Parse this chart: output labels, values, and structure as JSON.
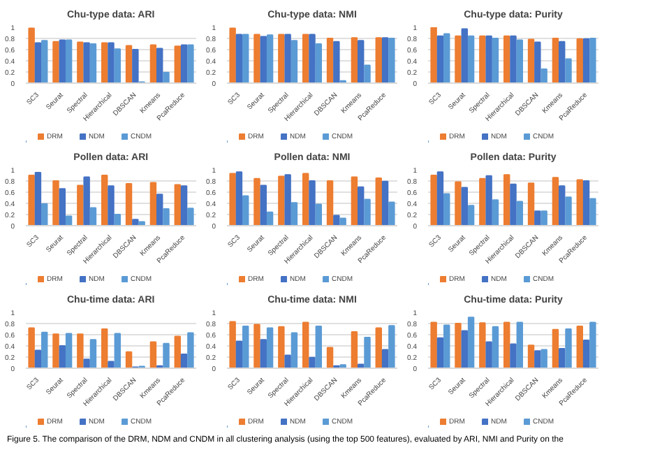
{
  "chart_data": [
    {
      "type": "bar",
      "title": "Chu-type data: ARI",
      "categories": [
        "SC3",
        "Seurat",
        "Spectral",
        "Hierarchical",
        "DBSCAN",
        "Kmeans",
        "PcaReduce"
      ],
      "series": [
        {
          "name": "DRM",
          "color": "#ed7d31",
          "values": [
            0.98,
            0.74,
            0.73,
            0.72,
            0.67,
            0.68,
            0.66
          ]
        },
        {
          "name": "NDM",
          "color": "#4472c4",
          "values": [
            0.72,
            0.77,
            0.72,
            0.72,
            0.6,
            0.62,
            0.68
          ]
        },
        {
          "name": "CNDM",
          "color": "#5b9bd5",
          "values": [
            0.76,
            0.77,
            0.7,
            0.61,
            0.02,
            0.19,
            0.68
          ]
        }
      ],
      "ylim": [
        0,
        1
      ],
      "yticks": [
        0,
        0.2,
        0.4,
        0.6,
        0.8,
        1
      ],
      "grid": "y",
      "legend": "bottom"
    },
    {
      "type": "bar",
      "title": "Chu-type data: NMI",
      "categories": [
        "SC3",
        "Seurat",
        "Spectral",
        "Hierarchical",
        "DBSCAN",
        "Kmeans",
        "PcaReduce"
      ],
      "series": [
        {
          "name": "DRM",
          "color": "#ed7d31",
          "values": [
            0.98,
            0.87,
            0.87,
            0.87,
            0.8,
            0.81,
            0.81
          ]
        },
        {
          "name": "NDM",
          "color": "#4472c4",
          "values": [
            0.87,
            0.83,
            0.87,
            0.87,
            0.74,
            0.76,
            0.81
          ]
        },
        {
          "name": "CNDM",
          "color": "#5b9bd5",
          "values": [
            0.87,
            0.86,
            0.76,
            0.7,
            0.04,
            0.32,
            0.8
          ]
        }
      ],
      "ylim": [
        0,
        1
      ],
      "yticks": [
        0,
        0.2,
        0.4,
        0.6,
        0.8,
        1
      ],
      "grid": "y",
      "legend": "bottom"
    },
    {
      "type": "bar",
      "title": "Chu-type data: Purity",
      "categories": [
        "SC3",
        "Seurat",
        "Spectral",
        "Hierarchical",
        "DBSCAN",
        "Kmeans",
        "PcaReduce"
      ],
      "series": [
        {
          "name": "DRM",
          "color": "#ed7d31",
          "values": [
            1.0,
            0.84,
            0.84,
            0.84,
            0.78,
            0.8,
            0.79
          ]
        },
        {
          "name": "NDM",
          "color": "#4472c4",
          "values": [
            0.84,
            0.97,
            0.84,
            0.84,
            0.73,
            0.74,
            0.79
          ]
        },
        {
          "name": "CNDM",
          "color": "#5b9bd5",
          "values": [
            0.88,
            0.84,
            0.8,
            0.77,
            0.25,
            0.43,
            0.8
          ]
        }
      ],
      "ylim": [
        0,
        1
      ],
      "yticks": [
        0,
        0.2,
        0.4,
        0.6,
        0.8,
        1
      ],
      "grid": "y",
      "legend": "bottom"
    },
    {
      "type": "bar",
      "title": "Pollen data: ARI",
      "categories": [
        "SC3",
        "Seurat",
        "Spectral",
        "Hierarchical",
        "DBSCAN",
        "Kmeans",
        "PcaReduce"
      ],
      "series": [
        {
          "name": "DRM",
          "color": "#ed7d31",
          "values": [
            0.9,
            0.8,
            0.72,
            0.9,
            0.75,
            0.77,
            0.73
          ]
        },
        {
          "name": "NDM",
          "color": "#4472c4",
          "values": [
            0.95,
            0.66,
            0.87,
            0.71,
            0.11,
            0.56,
            0.71
          ]
        },
        {
          "name": "CNDM",
          "color": "#5b9bd5",
          "values": [
            0.39,
            0.17,
            0.32,
            0.2,
            0.07,
            0.3,
            0.31
          ]
        }
      ],
      "ylim": [
        0,
        1
      ],
      "yticks": [
        0,
        0.2,
        0.4,
        0.6,
        0.8,
        1
      ],
      "grid": "y",
      "legend": "bottom"
    },
    {
      "type": "bar",
      "title": "Pollen data: NMI",
      "categories": [
        "SC3",
        "Seurat",
        "Spectral",
        "Hierarchical",
        "DBSCAN",
        "Kmeans",
        "PcaReduce"
      ],
      "series": [
        {
          "name": "DRM",
          "color": "#ed7d31",
          "values": [
            0.93,
            0.84,
            0.88,
            0.93,
            0.8,
            0.87,
            0.85
          ]
        },
        {
          "name": "NDM",
          "color": "#4472c4",
          "values": [
            0.96,
            0.72,
            0.91,
            0.8,
            0.18,
            0.69,
            0.79
          ]
        },
        {
          "name": "CNDM",
          "color": "#5b9bd5",
          "values": [
            0.53,
            0.24,
            0.41,
            0.38,
            0.13,
            0.47,
            0.42
          ]
        }
      ],
      "ylim": [
        0,
        1
      ],
      "yticks": [
        0,
        0.2,
        0.4,
        0.6,
        0.8,
        1
      ],
      "grid": "y",
      "legend": "bottom"
    },
    {
      "type": "bar",
      "title": "Pollen data: Purity",
      "categories": [
        "SC3",
        "Seurat",
        "Spectral",
        "Hierarchical",
        "DBSCAN",
        "Kmeans",
        "PcaReduce"
      ],
      "series": [
        {
          "name": "DRM",
          "color": "#ed7d31",
          "values": [
            0.9,
            0.78,
            0.84,
            0.91,
            0.76,
            0.86,
            0.82
          ]
        },
        {
          "name": "NDM",
          "color": "#4472c4",
          "values": [
            0.96,
            0.68,
            0.89,
            0.74,
            0.26,
            0.71,
            0.8
          ]
        },
        {
          "name": "CNDM",
          "color": "#5b9bd5",
          "values": [
            0.57,
            0.36,
            0.46,
            0.43,
            0.26,
            0.51,
            0.48
          ]
        }
      ],
      "ylim": [
        0,
        1
      ],
      "yticks": [
        0,
        0.2,
        0.4,
        0.6,
        0.8,
        1
      ],
      "grid": "y",
      "legend": "bottom"
    },
    {
      "type": "bar",
      "title": "Chu-time data: ARI",
      "categories": [
        "SC3",
        "Seurat",
        "Spectral",
        "Hierarchical",
        "DBSCAN",
        "Kmeans",
        "PcaReduce"
      ],
      "series": [
        {
          "name": "DRM",
          "color": "#ed7d31",
          "values": [
            0.72,
            0.61,
            0.61,
            0.7,
            0.29,
            0.47,
            0.57
          ]
        },
        {
          "name": "NDM",
          "color": "#4472c4",
          "values": [
            0.32,
            0.4,
            0.16,
            0.12,
            0.02,
            0.04,
            0.25
          ]
        },
        {
          "name": "CNDM",
          "color": "#5b9bd5",
          "values": [
            0.64,
            0.62,
            0.51,
            0.62,
            0.03,
            0.44,
            0.63
          ]
        }
      ],
      "ylim": [
        0,
        1
      ],
      "yticks": [
        0,
        0.2,
        0.4,
        0.6,
        0.8,
        1
      ],
      "grid": "y",
      "legend": "bottom"
    },
    {
      "type": "bar",
      "title": "Chu-time data: NMI",
      "categories": [
        "SC3",
        "Seurat",
        "Spectral",
        "Hierarchical",
        "DBSCAN",
        "Kmeans",
        "PcaReduce"
      ],
      "series": [
        {
          "name": "DRM",
          "color": "#ed7d31",
          "values": [
            0.83,
            0.78,
            0.74,
            0.82,
            0.37,
            0.65,
            0.72
          ]
        },
        {
          "name": "NDM",
          "color": "#4472c4",
          "values": [
            0.48,
            0.51,
            0.23,
            0.19,
            0.04,
            0.07,
            0.33
          ]
        },
        {
          "name": "CNDM",
          "color": "#5b9bd5",
          "values": [
            0.75,
            0.72,
            0.63,
            0.75,
            0.06,
            0.55,
            0.76
          ]
        }
      ],
      "ylim": [
        0,
        1
      ],
      "yticks": [
        0,
        0.2,
        0.4,
        0.6,
        0.8,
        1
      ],
      "grid": "y",
      "legend": "bottom"
    },
    {
      "type": "bar",
      "title": "Chu-time data: Purity",
      "categories": [
        "SC3",
        "Seurat",
        "Spectral",
        "Hierarchical",
        "DBSCAN",
        "Kmeans",
        "PcaReduce"
      ],
      "series": [
        {
          "name": "DRM",
          "color": "#ed7d31",
          "values": [
            0.82,
            0.8,
            0.81,
            0.82,
            0.41,
            0.69,
            0.75
          ]
        },
        {
          "name": "NDM",
          "color": "#4472c4",
          "values": [
            0.54,
            0.67,
            0.47,
            0.43,
            0.31,
            0.35,
            0.5
          ]
        },
        {
          "name": "CNDM",
          "color": "#5b9bd5",
          "values": [
            0.77,
            0.91,
            0.74,
            0.82,
            0.33,
            0.7,
            0.82
          ]
        }
      ],
      "ylim": [
        0,
        1
      ],
      "yticks": [
        0,
        0.2,
        0.4,
        0.6,
        0.8,
        1
      ],
      "grid": "y",
      "legend": "bottom",
      "annotations": [
        "Figure 5. The comparison of the DRM, NDM and CNDM in all clustering analysis (using the top 500 features), evaluated by ARI, NMI and Purity on the"
      ]
    }
  ]
}
